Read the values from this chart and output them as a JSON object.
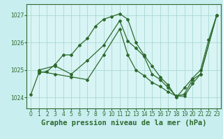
{
  "title": "Graphe pression niveau de la mer (hPa)",
  "bg_color": "#c8eef0",
  "plot_bg_color": "#d8f4f4",
  "line_color": "#2d6a2d",
  "grid_color": "#a0d4cc",
  "xlim": [
    -0.5,
    23.5
  ],
  "ylim": [
    1023.6,
    1027.4
  ],
  "yticks": [
    1024,
    1025,
    1026,
    1027
  ],
  "xticks": [
    0,
    1,
    2,
    3,
    4,
    5,
    6,
    7,
    8,
    9,
    10,
    11,
    12,
    13,
    14,
    15,
    16,
    17,
    18,
    19,
    20,
    21,
    22,
    23
  ],
  "series1_x": [
    0,
    1,
    2,
    3,
    4,
    5,
    6,
    7,
    8,
    9,
    10,
    11,
    12,
    13,
    14,
    15,
    16,
    17,
    18,
    19,
    20,
    21,
    22,
    23
  ],
  "series1_y": [
    1024.1,
    1024.9,
    1024.95,
    1025.2,
    1025.55,
    1025.55,
    1025.9,
    1026.15,
    1026.6,
    1026.85,
    1026.95,
    1027.05,
    1026.85,
    1026.0,
    1025.55,
    1025.15,
    1024.75,
    1024.45,
    1024.0,
    1024.35,
    1024.7,
    1025.0,
    1026.1,
    1027.0
  ],
  "series2_x": [
    1,
    3,
    5,
    7,
    9,
    11,
    12,
    13,
    14,
    15,
    16,
    17,
    18,
    19,
    20,
    21,
    23
  ],
  "series2_y": [
    1025.0,
    1025.15,
    1024.85,
    1025.35,
    1025.9,
    1026.8,
    1026.05,
    1025.8,
    1025.5,
    1024.85,
    1024.65,
    1024.35,
    1024.05,
    1024.12,
    1024.65,
    1024.85,
    1027.0
  ],
  "series3_x": [
    1,
    3,
    5,
    7,
    9,
    11,
    12,
    13,
    14,
    15,
    16,
    17,
    18,
    19,
    20,
    21,
    23
  ],
  "series3_y": [
    1024.95,
    1024.85,
    1024.75,
    1024.65,
    1025.55,
    1026.5,
    1025.55,
    1025.0,
    1024.8,
    1024.55,
    1024.4,
    1024.2,
    1024.05,
    1024.05,
    1024.5,
    1024.85,
    1027.0
  ],
  "figsize": [
    3.2,
    2.0
  ],
  "dpi": 100,
  "title_fontsize": 7.5,
  "tick_fontsize": 5.5,
  "marker": "D",
  "markersize": 2.0,
  "linewidth": 0.9
}
